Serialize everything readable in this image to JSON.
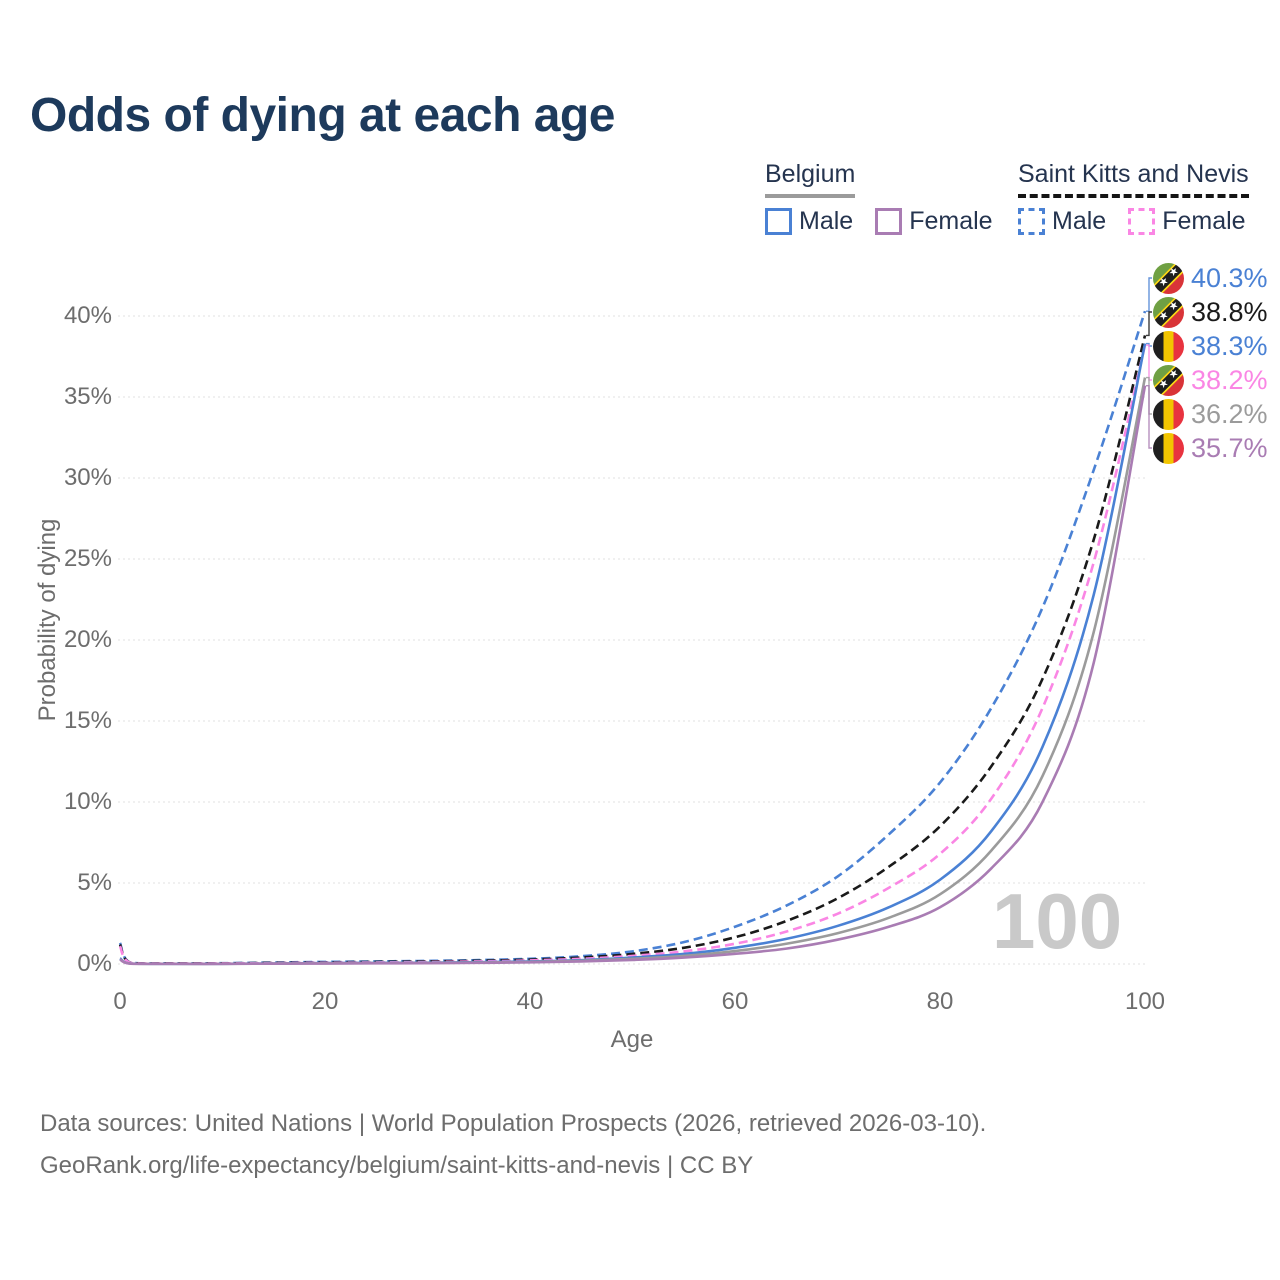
{
  "title": "Odds of dying at each age",
  "watermark": "100",
  "legend": {
    "groups": [
      {
        "country": "Belgium",
        "line_style": "solid",
        "rule_color": "#9b9b9b",
        "items": [
          {
            "label": "Male",
            "color": "#4a81d4",
            "dashed": false
          },
          {
            "label": "Female",
            "color": "#a97cb3",
            "dashed": false
          }
        ]
      },
      {
        "country": "Saint Kitts and Nevis",
        "line_style": "dashed",
        "rule_color": "#151515",
        "items": [
          {
            "label": "Male",
            "color": "#4a81d4",
            "dashed": true
          },
          {
            "label": "Female",
            "color": "#fa86e4",
            "dashed": true
          }
        ]
      }
    ]
  },
  "footer": {
    "line1": "Data sources: United Nations | World Population Prospects (2026, retrieved 2026-03-10).",
    "line2": "GeoRank.org/life-expectancy/belgium/saint-kitts-and-nevis | CC BY"
  },
  "chart_data": {
    "type": "line",
    "title": "Odds of dying at each age",
    "xlabel": "Age",
    "ylabel": "Probability of dying",
    "xlim": [
      0,
      100
    ],
    "ylim_pct": [
      0,
      43
    ],
    "x_ticks": [
      0,
      20,
      40,
      60,
      80,
      100
    ],
    "y_tick_values": [
      0,
      5,
      10,
      15,
      20,
      25,
      30,
      35,
      40
    ],
    "y_tick_labels": [
      "0%",
      "5%",
      "10%",
      "15%",
      "20%",
      "25%",
      "30%",
      "35%",
      "40%"
    ],
    "grid": "horizontal-dotted",
    "legend_position": "top-right",
    "ages": [
      0,
      1,
      5,
      10,
      15,
      20,
      25,
      30,
      35,
      40,
      45,
      50,
      55,
      60,
      65,
      70,
      75,
      80,
      85,
      90,
      95,
      100
    ],
    "series": [
      {
        "name": "Saint Kitts and Nevis — Male",
        "flag": "skn",
        "color": "#4a81d4",
        "dashed": true,
        "end_label": "40.3%",
        "values": [
          1.3,
          0.09,
          0.04,
          0.05,
          0.09,
          0.13,
          0.16,
          0.19,
          0.24,
          0.32,
          0.48,
          0.78,
          1.35,
          2.3,
          3.6,
          5.4,
          8.0,
          11.2,
          15.8,
          22.0,
          30.5,
          40.3
        ]
      },
      {
        "name": "Saint Kitts and Nevis — Both sexes",
        "flag": "skn",
        "color": "#1a1a1a",
        "dashed": true,
        "end_label": "38.8%",
        "values": [
          1.2,
          0.08,
          0.035,
          0.04,
          0.07,
          0.1,
          0.13,
          0.16,
          0.2,
          0.27,
          0.4,
          0.62,
          1.0,
          1.65,
          2.65,
          4.05,
          6.0,
          8.5,
          12.2,
          17.6,
          26.2,
          38.8
        ]
      },
      {
        "name": "Belgium — Male",
        "flag": "be",
        "color": "#4a81d4",
        "dashed": false,
        "end_label": "38.3%",
        "values": [
          0.35,
          0.03,
          0.01,
          0.01,
          0.03,
          0.06,
          0.07,
          0.08,
          0.11,
          0.16,
          0.24,
          0.4,
          0.62,
          1.0,
          1.55,
          2.35,
          3.5,
          5.2,
          8.2,
          13.4,
          22.8,
          38.3
        ]
      },
      {
        "name": "Saint Kitts and Nevis — Female",
        "flag": "skn",
        "color": "#fa86e4",
        "dashed": true,
        "end_label": "38.2%",
        "values": [
          1.1,
          0.07,
          0.03,
          0.035,
          0.05,
          0.08,
          0.1,
          0.12,
          0.16,
          0.22,
          0.32,
          0.5,
          0.78,
          1.25,
          2.0,
          3.1,
          4.7,
          6.8,
          10.2,
          15.8,
          24.8,
          38.2
        ]
      },
      {
        "name": "Belgium — Both sexes",
        "flag": "be",
        "color": "#9b9b9b",
        "dashed": false,
        "end_label": "36.2%",
        "values": [
          0.3,
          0.025,
          0.009,
          0.009,
          0.025,
          0.045,
          0.055,
          0.065,
          0.09,
          0.13,
          0.2,
          0.32,
          0.5,
          0.8,
          1.25,
          1.9,
          2.85,
          4.3,
          7.0,
          11.6,
          20.5,
          36.2
        ]
      },
      {
        "name": "Belgium — Female",
        "flag": "be",
        "color": "#a97cb3",
        "dashed": false,
        "end_label": "35.7%",
        "values": [
          0.28,
          0.02,
          0.008,
          0.008,
          0.02,
          0.03,
          0.04,
          0.05,
          0.07,
          0.1,
          0.16,
          0.25,
          0.4,
          0.63,
          0.95,
          1.5,
          2.3,
          3.5,
          5.9,
          10.0,
          18.6,
          35.7
        ]
      }
    ]
  }
}
